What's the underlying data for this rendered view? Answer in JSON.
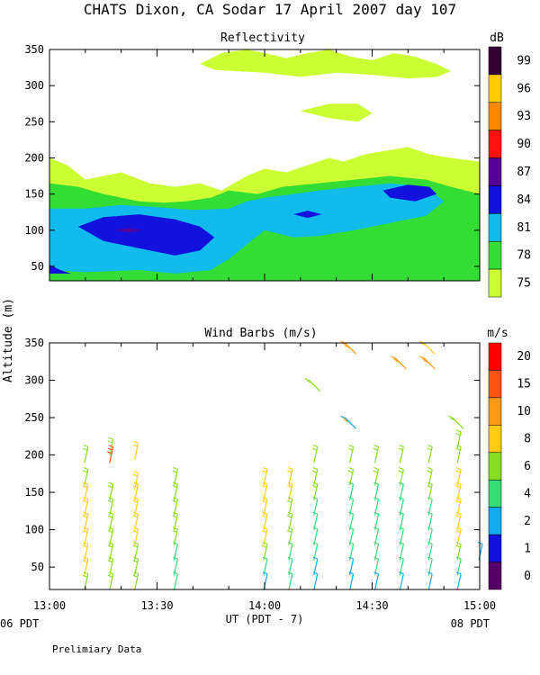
{
  "title": "CHATS Dixon, CA  Sodar  17 April 2007  day 107",
  "shared_ylabel": "Altitude (m)",
  "x_axis": {
    "label": "UT  (PDT - 7)",
    "ticks": [
      "13:00",
      "13:30",
      "14:00",
      "14:30",
      "15:00"
    ],
    "left_local": "06 PDT",
    "right_local": "08 PDT"
  },
  "footnote": "Prelimiary Data",
  "colors": {
    "c75": "#ccff33",
    "c78": "#33dd33",
    "c81": "#11bbee",
    "c84": "#1111dd",
    "c87": "#550099",
    "c90": "#ff1111",
    "c93": "#ff8800",
    "c96": "#ffcc00",
    "c99": "#330033"
  },
  "chart_data": [
    {
      "type": "heatmap",
      "title": "Reflectivity",
      "colorbar_unit": "dB",
      "colorbar_ticks": [
        "75",
        "78",
        "81",
        "84",
        "87",
        "90",
        "93",
        "96",
        "99"
      ],
      "x_range": [
        "13:00",
        "15:00"
      ],
      "ylim": [
        30,
        350
      ],
      "yticks": [
        "50",
        "100",
        "150",
        "200",
        "250",
        "300",
        "350"
      ],
      "levels_db": [
        75,
        78,
        81,
        84,
        87
      ],
      "contour_regions": [
        {
          "level": 75,
          "x": [
            "13:00",
            "13:05",
            "13:10",
            "13:20",
            "13:28",
            "13:35",
            "13:42",
            "13:48",
            "13:55",
            "14:00",
            "14:06",
            "14:12",
            "14:18",
            "14:22",
            "14:28",
            "14:34",
            "14:40",
            "14:46",
            "14:52",
            "15:00",
            "15:00",
            "13:00"
          ],
          "y": [
            200,
            190,
            170,
            180,
            165,
            160,
            165,
            155,
            175,
            185,
            180,
            190,
            200,
            195,
            205,
            210,
            215,
            205,
            200,
            195,
            30,
            30
          ]
        },
        {
          "level": 75,
          "x": [
            "13:42",
            "13:48",
            "13:55",
            "14:00",
            "14:06",
            "14:12",
            "14:18",
            "14:24",
            "14:30",
            "14:36",
            "14:42",
            "14:48",
            "14:52",
            "14:48",
            "14:40",
            "14:30",
            "14:20",
            "14:10",
            "14:00",
            "13:52",
            "13:46",
            "13:42"
          ],
          "y": [
            330,
            345,
            350,
            345,
            338,
            345,
            350,
            340,
            335,
            345,
            340,
            330,
            320,
            312,
            310,
            315,
            318,
            312,
            318,
            320,
            322,
            330
          ]
        },
        {
          "level": 75,
          "x": [
            "14:10",
            "14:18",
            "14:26",
            "14:30",
            "14:26",
            "14:18",
            "14:10"
          ],
          "y": [
            265,
            275,
            275,
            262,
            250,
            255,
            265
          ]
        },
        {
          "level": 78,
          "x": [
            "13:00",
            "13:08",
            "13:15",
            "13:25",
            "13:32",
            "13:38",
            "13:45",
            "13:50",
            "13:58",
            "14:05",
            "14:15",
            "14:25",
            "14:35",
            "14:45",
            "14:52",
            "15:00",
            "15:00",
            "13:00"
          ],
          "y": [
            165,
            160,
            150,
            140,
            138,
            140,
            145,
            155,
            150,
            160,
            165,
            170,
            175,
            170,
            160,
            150,
            30,
            30
          ]
        },
        {
          "level": 81,
          "x": [
            "13:00",
            "13:10",
            "13:20",
            "13:30",
            "13:40",
            "13:50",
            "13:55",
            "14:00",
            "14:08",
            "14:15",
            "14:25",
            "14:35",
            "14:45",
            "14:50",
            "14:45",
            "14:35",
            "14:25",
            "14:15",
            "14:08",
            "14:00",
            "13:55",
            "13:50",
            "13:45",
            "13:35",
            "13:25",
            "13:10",
            "13:00"
          ],
          "y": [
            130,
            130,
            135,
            132,
            128,
            130,
            140,
            145,
            150,
            155,
            160,
            165,
            160,
            140,
            120,
            110,
            100,
            92,
            90,
            100,
            80,
            60,
            45,
            40,
            45,
            42,
            45
          ]
        },
        {
          "level": 84,
          "x": [
            "13:08",
            "13:15",
            "13:25",
            "13:35",
            "13:42",
            "13:46",
            "13:42",
            "13:35",
            "13:25",
            "13:15",
            "13:08"
          ],
          "y": [
            105,
            118,
            122,
            115,
            105,
            90,
            72,
            65,
            75,
            85,
            105
          ]
        },
        {
          "level": 84,
          "x": [
            "14:33",
            "14:40",
            "14:46",
            "14:48",
            "14:42",
            "14:35",
            "14:33"
          ],
          "y": [
            155,
            163,
            160,
            150,
            140,
            145,
            155
          ]
        },
        {
          "level": 84,
          "x": [
            "14:08",
            "14:12",
            "14:16",
            "14:12",
            "14:08"
          ],
          "y": [
            122,
            127,
            122,
            117,
            122
          ]
        },
        {
          "level": 84,
          "x": [
            "13:00",
            "13:03",
            "13:06",
            "13:00"
          ],
          "y": [
            52,
            45,
            40,
            40
          ]
        },
        {
          "level": 87,
          "x": [
            "13:18",
            "13:22",
            "13:26",
            "13:22",
            "13:18"
          ],
          "y": [
            100,
            103,
            100,
            97,
            100
          ]
        }
      ]
    },
    {
      "type": "scatter",
      "title": "Wind Barbs (m/s)",
      "colorbar_unit": "m/s",
      "colorbar_ticks": [
        "0",
        "1",
        "2",
        "4",
        "6",
        "8",
        "10",
        "15",
        "20"
      ],
      "x_range": [
        "13:00",
        "15:00"
      ],
      "ylim": [
        20,
        350
      ],
      "yticks": [
        "50",
        "100",
        "150",
        "200",
        "250",
        "300",
        "350"
      ],
      "barb_times": [
        "13:10",
        "13:17",
        "13:24",
        "13:35",
        "14:00",
        "14:07",
        "14:14",
        "14:24",
        "14:31",
        "14:38",
        "14:46",
        "14:54",
        "15:00"
      ],
      "barbs": [
        {
          "t": "13:10",
          "alt": [
            200,
            170,
            150,
            130,
            110,
            90,
            70,
            50,
            30
          ],
          "spd": [
            7,
            7,
            8,
            8,
            8,
            8,
            8,
            8,
            7
          ]
        },
        {
          "t": "13:17",
          "alt": [
            210,
            200,
            150,
            130,
            110,
            90,
            70,
            50,
            30
          ],
          "spd": [
            6,
            18,
            7,
            7,
            7,
            7,
            7,
            7,
            6
          ]
        },
        {
          "t": "13:24",
          "alt": [
            205,
            165,
            150,
            130,
            110,
            90,
            70,
            50,
            30
          ],
          "spd": [
            8,
            9,
            8,
            8,
            8,
            8,
            7,
            7,
            6
          ]
        },
        {
          "t": "13:35",
          "alt": [
            170,
            150,
            130,
            110,
            90,
            70,
            50,
            30
          ],
          "spd": [
            6,
            6,
            6,
            6,
            6,
            5,
            5,
            5
          ]
        },
        {
          "t": "14:00",
          "alt": [
            170,
            150,
            130,
            110,
            90,
            70,
            50,
            30
          ],
          "spd": [
            9,
            8,
            8,
            8,
            8,
            7,
            5,
            3
          ]
        },
        {
          "t": "14:07",
          "alt": [
            170,
            150,
            130,
            110,
            90,
            70,
            50,
            30
          ],
          "spd": [
            8,
            8,
            7,
            7,
            6,
            5,
            4,
            4
          ]
        },
        {
          "t": "14:14",
          "alt": [
            290,
            200,
            170,
            150,
            130,
            110,
            90,
            70,
            50,
            30
          ],
          "spd": [
            6,
            6,
            6,
            6,
            5,
            5,
            4,
            4,
            3,
            3
          ]
        },
        {
          "t": "14:24",
          "alt": [
            340,
            240,
            240,
            200,
            170,
            150,
            130,
            110,
            90,
            70,
            50,
            30
          ],
          "spd": [
            14,
            14,
            3,
            6,
            6,
            5,
            5,
            5,
            4,
            4,
            3,
            3
          ]
        },
        {
          "t": "14:31",
          "alt": [
            200,
            170,
            150,
            130,
            110,
            90,
            70,
            50,
            30
          ],
          "spd": [
            6,
            6,
            5,
            5,
            5,
            4,
            4,
            4,
            3
          ]
        },
        {
          "t": "14:38",
          "alt": [
            320,
            200,
            170,
            150,
            130,
            110,
            90,
            70,
            50,
            30
          ],
          "spd": [
            14,
            6,
            6,
            5,
            5,
            5,
            4,
            4,
            4,
            3
          ]
        },
        {
          "t": "14:46",
          "alt": [
            340,
            320,
            200,
            170,
            150,
            130,
            110,
            90,
            70,
            50,
            30
          ],
          "spd": [
            9,
            14,
            6,
            6,
            6,
            5,
            5,
            4,
            4,
            4,
            3
          ]
        },
        {
          "t": "14:54",
          "alt": [
            240,
            220,
            200,
            170,
            150,
            130,
            110,
            90,
            70,
            50,
            30
          ],
          "spd": [
            6,
            6,
            6,
            8,
            8,
            8,
            8,
            8,
            7,
            4,
            3
          ]
        },
        {
          "t": "15:00",
          "alt": [
            70
          ],
          "spd": [
            3
          ]
        }
      ]
    }
  ]
}
